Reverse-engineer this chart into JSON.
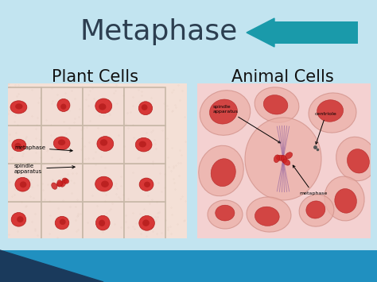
{
  "title": "Metaphase",
  "title_color": "#2c3e50",
  "title_fontsize": 26,
  "title_fontweight": "normal",
  "background_color_top": "#c8e8f0",
  "background_color": "#b0d8e8",
  "left_label": "Plant Cells",
  "right_label": "Animal Cells",
  "label_fontsize": 15,
  "label_color": "#111111",
  "arrow_color": "#1a9aaa",
  "plant_bg": "#f0d8cc",
  "plant_cell_bg": "#f5e0d8",
  "plant_nucleus_color": "#cc2222",
  "animal_bg": "#f0c8c0",
  "animal_cell_color": "#e8a8a0",
  "animal_nucleus_color": "#cc3333",
  "bottom_bar_color": "#2090c0",
  "bottom_dark_color": "#1a3a5c"
}
